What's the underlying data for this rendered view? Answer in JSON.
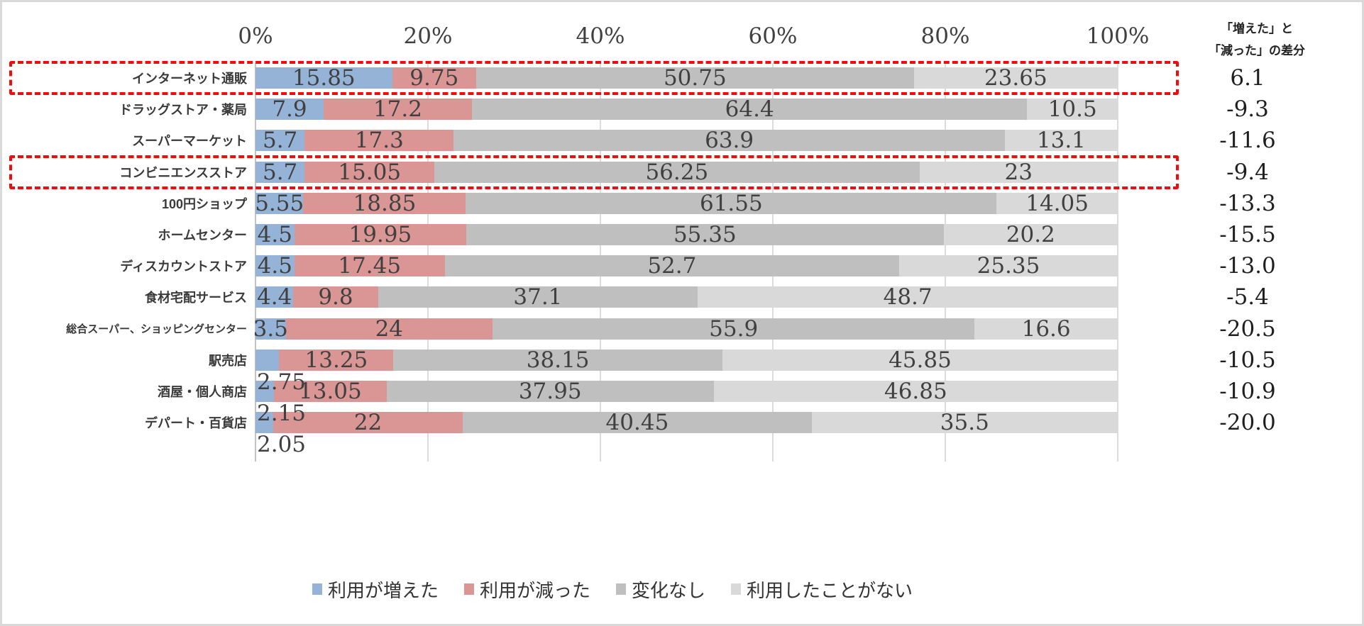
{
  "axis": {
    "ticks": [
      "0%",
      "20%",
      "40%",
      "60%",
      "80%",
      "100%"
    ]
  },
  "diff_column": {
    "header_lines": [
      "「増えた」と",
      "「減った」の差分"
    ]
  },
  "legend": [
    {
      "name": "increased",
      "label": "利用が増えた",
      "color": "#95B3D7"
    },
    {
      "name": "decreased",
      "label": "利用が減った",
      "color": "#D99694"
    },
    {
      "name": "no-change",
      "label": "変化なし",
      "color": "#BFBFBF"
    },
    {
      "name": "never-used",
      "label": "利用したことがない",
      "color": "#D9D9D9"
    }
  ],
  "colors": {
    "increased": "#95B3D7",
    "decreased": "#D99694",
    "no_change": "#BFBFBF",
    "never_used": "#D9D9D9",
    "highlight_box": "#F00C0C",
    "gridline": "#DCDCDC",
    "zero_line": "#C3C3C3",
    "frame_border": "#D9D9D9"
  },
  "rows": [
    {
      "label": "インターネット通販",
      "values": [
        15.85,
        9.75,
        50.75,
        23.65
      ],
      "value_labels": [
        "15.85",
        "9.75",
        "50.75",
        "23.65"
      ],
      "diff": "6.1",
      "highlighted": true,
      "first_label_below": false
    },
    {
      "label": "ドラッグストア・薬局",
      "values": [
        7.9,
        17.2,
        64.4,
        10.5
      ],
      "value_labels": [
        "7.9",
        "17.2",
        "64.4",
        "10.5"
      ],
      "diff": "-9.3",
      "highlighted": false,
      "first_label_below": false
    },
    {
      "label": "スーパーマーケット",
      "values": [
        5.7,
        17.3,
        63.9,
        13.1
      ],
      "value_labels": [
        "5.7",
        "17.3",
        "63.9",
        "13.1"
      ],
      "diff": "-11.6",
      "highlighted": false,
      "first_label_below": false
    },
    {
      "label": "コンビニエンスストア",
      "values": [
        5.7,
        15.05,
        56.25,
        23
      ],
      "value_labels": [
        "5.7",
        "15.05",
        "56.25",
        "23"
      ],
      "diff": "-9.4",
      "highlighted": true,
      "first_label_below": false
    },
    {
      "label": "100円ショップ",
      "values": [
        5.55,
        18.85,
        61.55,
        14.05
      ],
      "value_labels": [
        "5.55",
        "18.85",
        "61.55",
        "14.05"
      ],
      "diff": "-13.3",
      "highlighted": false,
      "first_label_below": false
    },
    {
      "label": "ホームセンター",
      "values": [
        4.5,
        19.95,
        55.35,
        20.2
      ],
      "value_labels": [
        "4.5",
        "19.95",
        "55.35",
        "20.2"
      ],
      "diff": "-15.5",
      "highlighted": false,
      "first_label_below": false
    },
    {
      "label": "ディスカウントストア",
      "values": [
        4.5,
        17.45,
        52.7,
        25.35
      ],
      "value_labels": [
        "4.5",
        "17.45",
        "52.7",
        "25.35"
      ],
      "diff": "-13.0",
      "highlighted": false,
      "first_label_below": false
    },
    {
      "label": "食材宅配サービス",
      "values": [
        4.4,
        9.8,
        37.1,
        48.7
      ],
      "value_labels": [
        "4.4",
        "9.8",
        "37.1",
        "48.7"
      ],
      "diff": "-5.4",
      "highlighted": false,
      "first_label_below": false
    },
    {
      "label": "総合スーパー、ショッピングセンター",
      "values": [
        3.5,
        24,
        55.9,
        16.6
      ],
      "value_labels": [
        "3.5",
        "24",
        "55.9",
        "16.6"
      ],
      "diff": "-20.5",
      "highlighted": false,
      "first_label_below": false
    },
    {
      "label": "駅売店",
      "values": [
        2.75,
        13.25,
        38.15,
        45.85
      ],
      "value_labels": [
        "2.75",
        "13.25",
        "38.15",
        "45.85"
      ],
      "diff": "-10.5",
      "highlighted": false,
      "first_label_below": true
    },
    {
      "label": "酒屋・個人商店",
      "values": [
        2.15,
        13.05,
        37.95,
        46.85
      ],
      "value_labels": [
        "2.15",
        "13.05",
        "37.95",
        "46.85"
      ],
      "diff": "-10.9",
      "highlighted": false,
      "first_label_below": true
    },
    {
      "label": "デパート・百貨店",
      "values": [
        2.05,
        22,
        40.45,
        35.5
      ],
      "value_labels": [
        "2.05",
        "22",
        "40.45",
        "35.5"
      ],
      "diff": "-20.0",
      "highlighted": false,
      "first_label_below": true
    }
  ],
  "chart_data": {
    "type": "bar",
    "orientation": "horizontal",
    "stacked": true,
    "title": "",
    "xlabel": "",
    "ylabel": "",
    "xlim": [
      0,
      100
    ],
    "x_ticks": [
      "0%",
      "20%",
      "40%",
      "60%",
      "80%",
      "100%"
    ],
    "grid": true,
    "legend_position": "bottom",
    "categories": [
      "インターネット通販",
      "ドラッグストア・薬局",
      "スーパーマーケット",
      "コンビニエンスストア",
      "100円ショップ",
      "ホームセンター",
      "ディスカウントストア",
      "食材宅配サービス",
      "総合スーパー、ショッピングセンター",
      "駅売店",
      "酒屋・個人商店",
      "デパート・百貨店"
    ],
    "series": [
      {
        "name": "利用が増えた",
        "color": "#95B3D7",
        "values": [
          15.85,
          7.9,
          5.7,
          5.7,
          5.55,
          4.5,
          4.5,
          4.4,
          3.5,
          2.75,
          2.15,
          2.05
        ]
      },
      {
        "name": "利用が減った",
        "color": "#D99694",
        "values": [
          9.75,
          17.2,
          17.3,
          15.05,
          18.85,
          19.95,
          17.45,
          9.8,
          24,
          13.25,
          13.05,
          22
        ]
      },
      {
        "name": "変化なし",
        "color": "#BFBFBF",
        "values": [
          50.75,
          64.4,
          63.9,
          56.25,
          61.55,
          55.35,
          52.7,
          37.1,
          55.9,
          38.15,
          37.95,
          40.45
        ]
      },
      {
        "name": "利用したことがない",
        "color": "#D9D9D9",
        "values": [
          23.65,
          10.5,
          13.1,
          23,
          14.05,
          20.2,
          25.35,
          48.7,
          16.6,
          45.85,
          46.85,
          35.5
        ]
      }
    ],
    "extra_column": {
      "header": "「増えた」と「減った」の差分",
      "values": [
        6.1,
        -9.3,
        -11.6,
        -9.4,
        -13.3,
        -15.5,
        -13.0,
        -5.4,
        -20.5,
        -10.5,
        -10.9,
        -20.0
      ]
    },
    "highlighted_rows": [
      0,
      3
    ]
  }
}
